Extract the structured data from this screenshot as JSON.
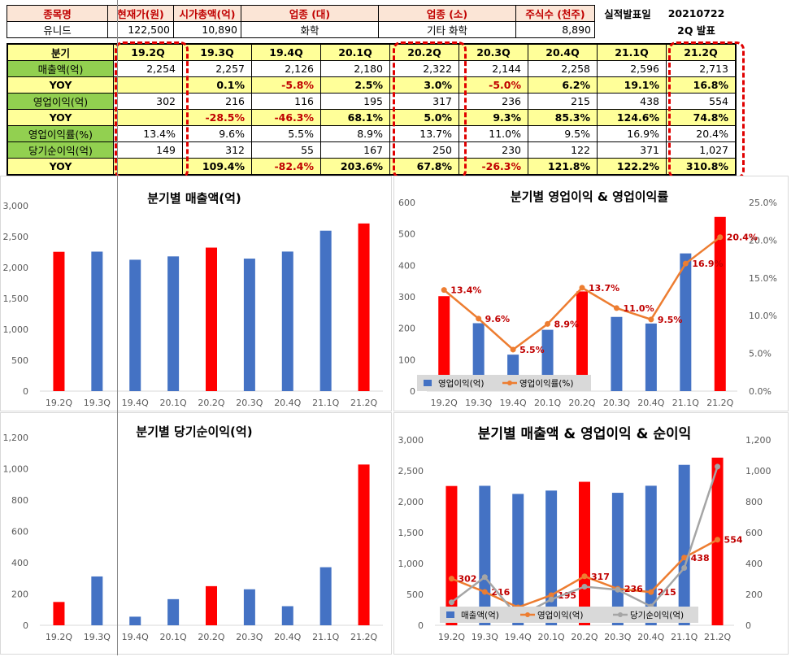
{
  "info": {
    "headers": [
      "종목명",
      "현재가(원)",
      "시가총액(억)",
      "업종 (대)",
      "업종 (소)",
      "주식수 (천주)"
    ],
    "values": [
      "유니드",
      "122,500",
      "10,890",
      "화학",
      "기타 화학",
      "8,890"
    ],
    "announce_label": "실적발표일",
    "announce_date": "20210722",
    "announce_note": "2Q 발표"
  },
  "table": {
    "quarter_label": "분기",
    "quarters": [
      "19.2Q",
      "19.3Q",
      "19.4Q",
      "20.1Q",
      "20.2Q",
      "20.3Q",
      "20.4Q",
      "21.1Q",
      "21.2Q"
    ],
    "rows": [
      {
        "label": "매출액(억)",
        "style": "green",
        "cells": [
          "2,254",
          "2,257",
          "2,126",
          "2,180",
          "2,322",
          "2,144",
          "2,258",
          "2,596",
          "2,713"
        ]
      },
      {
        "label": "YOY",
        "style": "yoy",
        "cells": [
          "",
          "0.1%",
          "-5.8%",
          "2.5%",
          "3.0%",
          "-5.0%",
          "6.2%",
          "19.1%",
          "16.8%"
        ]
      },
      {
        "label": "영업이익(억)",
        "style": "green",
        "cells": [
          "302",
          "216",
          "116",
          "195",
          "317",
          "236",
          "215",
          "438",
          "554"
        ]
      },
      {
        "label": "YOY",
        "style": "yoy",
        "cells": [
          "",
          "-28.5%",
          "-46.3%",
          "68.1%",
          "5.0%",
          "9.3%",
          "85.3%",
          "124.6%",
          "74.8%"
        ]
      },
      {
        "label": "영업이익률(%)",
        "style": "green",
        "cells": [
          "13.4%",
          "9.6%",
          "5.5%",
          "8.9%",
          "13.7%",
          "11.0%",
          "9.5%",
          "16.9%",
          "20.4%"
        ]
      },
      {
        "label": "당기순이익(억)",
        "style": "green",
        "cells": [
          "149",
          "312",
          "55",
          "167",
          "250",
          "230",
          "122",
          "371",
          "1,027"
        ]
      },
      {
        "label": "YOY",
        "style": "yoy",
        "cells": [
          "",
          "109.4%",
          "-82.4%",
          "203.6%",
          "67.8%",
          "-26.3%",
          "121.8%",
          "122.2%",
          "310.8%"
        ]
      }
    ]
  },
  "colors": {
    "blue": "#4472c4",
    "red": "#ff0000",
    "orange": "#ed7d31",
    "gray": "#a5a5a5",
    "label_red": "#c00000",
    "axis_text": "#595959"
  },
  "chart_data": [
    {
      "type": "bar",
      "title": "분기별 매출액(억)",
      "categories": [
        "19.2Q",
        "19.3Q",
        "19.4Q",
        "20.1Q",
        "20.2Q",
        "20.3Q",
        "20.4Q",
        "21.1Q",
        "21.2Q"
      ],
      "values": [
        2254,
        2257,
        2126,
        2180,
        2322,
        2144,
        2258,
        2596,
        2713
      ],
      "highlight_indices": [
        0,
        4,
        8
      ],
      "ylim": [
        0,
        3000
      ],
      "yticks": [
        "0",
        "500",
        "1,000",
        "1,500",
        "2,000",
        "2,500",
        "3,000"
      ],
      "grid": false
    },
    {
      "type": "bar",
      "title": "분기별 영업이익 & 영업이익률",
      "categories": [
        "19.2Q",
        "19.3Q",
        "19.4Q",
        "20.1Q",
        "20.2Q",
        "20.3Q",
        "20.4Q",
        "21.1Q",
        "21.2Q"
      ],
      "series": [
        {
          "name": "영업이익(억)",
          "type": "bar",
          "axis": "left",
          "values": [
            302,
            216,
            116,
            195,
            317,
            236,
            215,
            438,
            554
          ]
        },
        {
          "name": "영업이익률(%)",
          "type": "line",
          "axis": "right",
          "values": [
            13.4,
            9.6,
            5.5,
            8.9,
            13.7,
            11.0,
            9.5,
            16.9,
            20.4
          ],
          "labels": [
            "13.4%",
            "9.6%",
            "5.5%",
            "8.9%",
            "13.7%",
            "11.0%",
            "9.5%",
            "16.9%",
            "20.4%"
          ]
        }
      ],
      "highlight_indices": [
        0,
        4,
        8
      ],
      "ylim": [
        0,
        600
      ],
      "yticks": [
        "0",
        "100",
        "200",
        "300",
        "400",
        "500",
        "600"
      ],
      "y2lim": [
        0,
        25
      ],
      "y2ticks": [
        "0.0%",
        "5.0%",
        "10.0%",
        "15.0%",
        "20.0%",
        "25.0%"
      ],
      "legend": "bottom-left",
      "grid": false
    },
    {
      "type": "bar",
      "title": "분기별 당기순이익(억)",
      "categories": [
        "19.2Q",
        "19.3Q",
        "19.4Q",
        "20.1Q",
        "20.2Q",
        "20.3Q",
        "20.4Q",
        "21.1Q",
        "21.2Q"
      ],
      "values": [
        149,
        312,
        55,
        167,
        250,
        230,
        122,
        371,
        1027
      ],
      "highlight_indices": [
        0,
        4,
        8
      ],
      "ylim": [
        0,
        1200
      ],
      "yticks": [
        "0",
        "200",
        "400",
        "600",
        "800",
        "1,000",
        "1,200"
      ],
      "grid": false
    },
    {
      "type": "bar",
      "title": "분기별 매출액 & 영업이익 & 순이익",
      "categories": [
        "19.2Q",
        "19.3Q",
        "19.4Q",
        "20.1Q",
        "20.2Q",
        "20.3Q",
        "20.4Q",
        "21.1Q",
        "21.2Q"
      ],
      "series": [
        {
          "name": "매출액(억)",
          "type": "bar",
          "axis": "left",
          "values": [
            2254,
            2257,
            2126,
            2180,
            2322,
            2144,
            2258,
            2596,
            2713
          ]
        },
        {
          "name": "영업이익(억)",
          "type": "line",
          "axis": "right",
          "values": [
            302,
            216,
            116,
            195,
            317,
            236,
            215,
            438,
            554
          ],
          "labels": [
            "302",
            "216",
            "",
            "195",
            "317",
            "236",
            "215",
            "438",
            "554"
          ]
        },
        {
          "name": "당기순이익(억)",
          "type": "line",
          "axis": "right",
          "values": [
            149,
            312,
            55,
            167,
            250,
            230,
            122,
            371,
            1027
          ]
        }
      ],
      "highlight_indices": [
        0,
        4,
        8
      ],
      "ylim": [
        0,
        3000
      ],
      "yticks": [
        "0",
        "500",
        "1,000",
        "1,500",
        "2,000",
        "2,500",
        "3,000"
      ],
      "y2lim": [
        0,
        1200
      ],
      "y2ticks": [
        "0",
        "200",
        "400",
        "600",
        "800",
        "1,000",
        "1,200"
      ],
      "legend": "bottom-left",
      "grid": false
    }
  ]
}
